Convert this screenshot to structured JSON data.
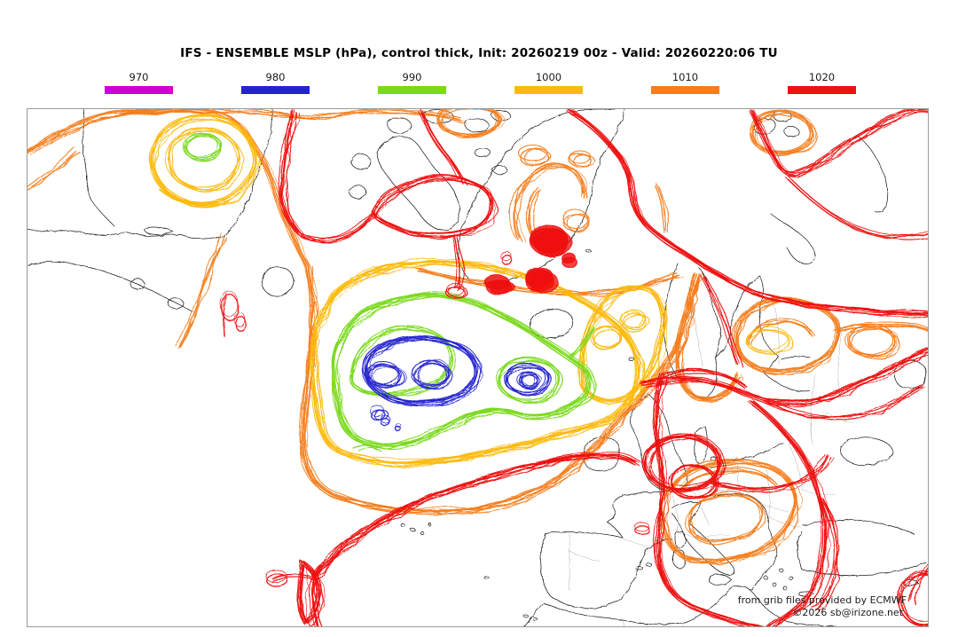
{
  "title": "IFS - ENSEMBLE MSLP (hPa), control thick, Init: 20260219 00z - Valid: 20260220:06 TU",
  "legend": {
    "levels": [
      {
        "label": "970",
        "color": "#cc00d2"
      },
      {
        "label": "980",
        "color": "#2424cf"
      },
      {
        "label": "990",
        "color": "#79d91a"
      },
      {
        "label": "1000",
        "color": "#fcba10"
      },
      {
        "label": "1010",
        "color": "#f57e1f"
      },
      {
        "label": "1020",
        "color": "#ee1111"
      }
    ]
  },
  "credits": {
    "line1": "from grib files provided by ECMWF",
    "line2": "©2026 sb@irizone.net"
  },
  "chart_data": {
    "type": "contour-ensemble-map",
    "title": "IFS - ENSEMBLE MSLP (hPa), control thick",
    "init": "20260219 00z",
    "valid": "20260220:06 TU",
    "unit": "hPa",
    "region": "North Atlantic / Europe",
    "levels": [
      970,
      980,
      990,
      1000,
      1010,
      1020
    ],
    "level_colors": {
      "970": "#cc00d2",
      "980": "#2424cf",
      "990": "#79d91a",
      "1000": "#fcba10",
      "1010": "#f57e1f",
      "1020": "#ee1111"
    },
    "features": [
      {
        "name": "deep ensemble low",
        "location": "central North Atlantic SW of Iceland",
        "min_closed_isobar_hPa": 980
      },
      {
        "name": "secondary low center",
        "location": "east of first low, mid-Atlantic",
        "min_closed_isobar_hPa": 980
      },
      {
        "name": "low",
        "location": "Labrador / NE Canada",
        "min_closed_isobar_hPa": 990
      },
      {
        "name": "low",
        "location": "southern Norway / Norwegian Sea",
        "min_closed_isobar_hPa": 1000
      },
      {
        "name": "low",
        "location": "Baltic region",
        "min_closed_isobar_hPa": 1000
      },
      {
        "name": "low",
        "location": "central Mediterranean / Italy",
        "min_closed_isobar_hPa": 1010
      },
      {
        "name": "1020 ridge bands",
        "location": "subtropical Atlantic, Arctic and eastern Europe"
      }
    ],
    "legend_position": "top",
    "grid": false
  }
}
